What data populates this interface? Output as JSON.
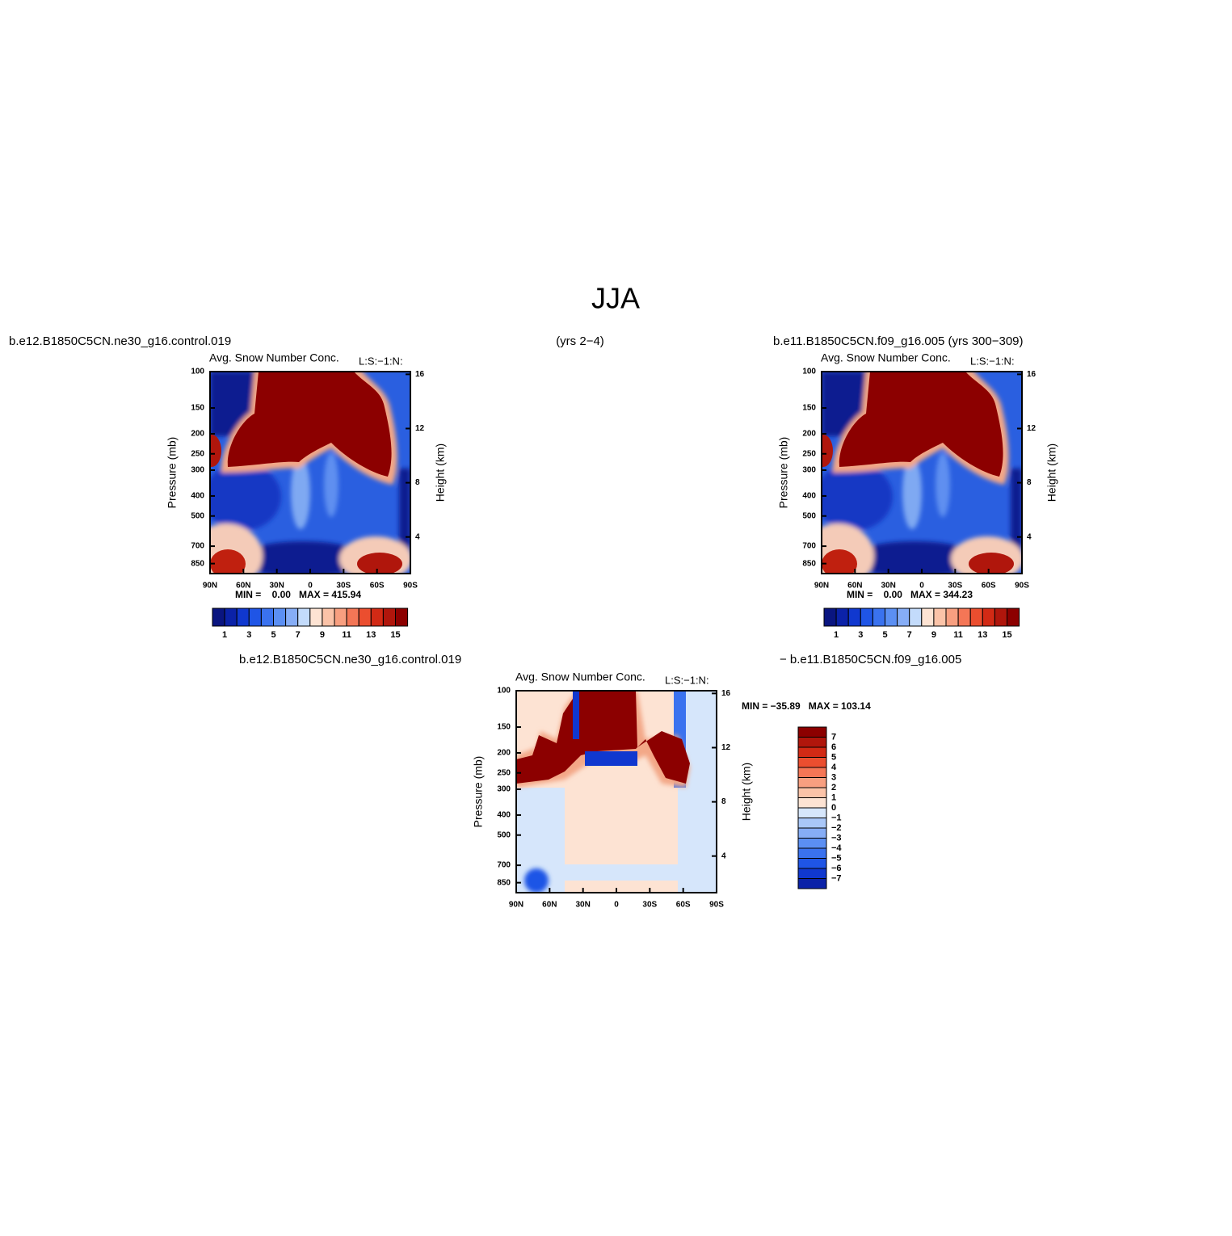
{
  "title": "JJA",
  "header": {
    "left": "b.e12.B1850C5CN.ne30_g16.control.019",
    "center": "(yrs 2−4)",
    "right": "b.e11.B1850C5CN.f09_g16.005 (yrs 300−309)"
  },
  "diff_header": {
    "left": "b.e12.B1850C5CN.ne30_g16.control.019",
    "right": "− b.e11.B1850C5CN.f09_g16.005"
  },
  "axes": {
    "ylabel": "Pressure (mb)",
    "y2label": "Height (km)",
    "ylog": true,
    "ylim": [
      100,
      950
    ],
    "yticks": [
      100,
      150,
      200,
      250,
      300,
      400,
      500,
      700,
      850
    ],
    "y2lim": [
      16.2,
      1.3
    ],
    "y2ticks": [
      16,
      12,
      8,
      4
    ],
    "xlim": [
      90,
      -90
    ],
    "xticks": [
      {
        "value": 90,
        "label": "90N"
      },
      {
        "value": 60,
        "label": "60N"
      },
      {
        "value": 30,
        "label": "30N"
      },
      {
        "value": 0,
        "label": "0"
      },
      {
        "value": -30,
        "label": "30S"
      },
      {
        "value": -60,
        "label": "60S"
      },
      {
        "value": -90,
        "label": "90S"
      }
    ]
  },
  "panels": [
    {
      "title": "Avg. Snow Number Conc.",
      "subtitle": "L:S:−1:N:",
      "stats": "MIN =    0.00   MAX = 415.94",
      "colorbar": {
        "colors": [
          "#0a1580",
          "#0b22a8",
          "#1038cf",
          "#1f55e6",
          "#3a72ef",
          "#5b8ff3",
          "#86adf6",
          "#c3dbfb",
          "#fde3d3",
          "#fbc3a8",
          "#f89f80",
          "#f47656",
          "#eb4e2f",
          "#d22a15",
          "#b0160c",
          "#8c0000"
        ],
        "labels": [
          1,
          3,
          5,
          7,
          9,
          11,
          13,
          15
        ]
      }
    },
    {
      "title": "Avg. Snow Number Conc.",
      "subtitle": "L:S:−1:N:",
      "stats": "MIN =    0.00   MAX = 344.23",
      "colorbar": {
        "colors": [
          "#0a1580",
          "#0b22a8",
          "#1038cf",
          "#1f55e6",
          "#3a72ef",
          "#5b8ff3",
          "#86adf6",
          "#c3dbfb",
          "#fde3d3",
          "#fbc3a8",
          "#f89f80",
          "#f47656",
          "#eb4e2f",
          "#d22a15",
          "#b0160c",
          "#8c0000"
        ],
        "labels": [
          1,
          3,
          5,
          7,
          9,
          11,
          13,
          15
        ]
      }
    },
    {
      "title": "Avg. Snow Number Conc.",
      "subtitle": "L:S:−1:N:",
      "stats": "MIN = −35.89   MAX = 103.14",
      "colorbar": {
        "colors": [
          "#8c0000",
          "#b0160c",
          "#d22a15",
          "#eb4e2f",
          "#f47656",
          "#f89f80",
          "#fbc3a8",
          "#fde3d3",
          "#d6e6fb",
          "#a9c7f8",
          "#86adf6",
          "#5b8ff3",
          "#3a72ef",
          "#1f55e6",
          "#1038cf",
          "#0b22a8"
        ],
        "labels": [
          7,
          6,
          5,
          4,
          3,
          2,
          1,
          0,
          {
            "value": -1,
            "label": "−1"
          },
          {
            "value": -2,
            "label": "−2"
          },
          {
            "value": -3,
            "label": "−3"
          },
          {
            "value": -4,
            "label": "−4"
          },
          {
            "value": -5,
            "label": "−5"
          },
          {
            "value": -6,
            "label": "−6"
          },
          {
            "value": -7,
            "label": "−7"
          }
        ]
      }
    }
  ]
}
